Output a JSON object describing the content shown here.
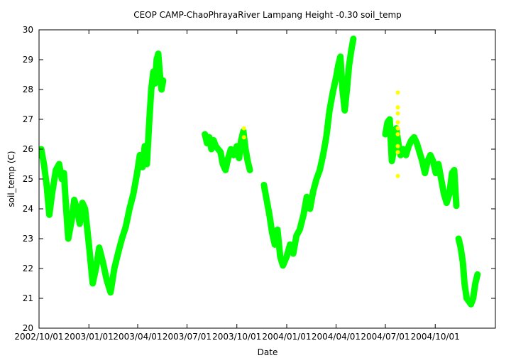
{
  "chart_data": {
    "type": "line",
    "title": "CEOP CAMP-ChaoPhrayaRiver Lampang Height -0.30 soil_temp",
    "xlabel": "Date",
    "ylabel": "soil_temp (C)",
    "ylim": [
      20,
      30
    ],
    "yticks": [
      "20",
      "21",
      "22",
      "23",
      "24",
      "25",
      "26",
      "27",
      "28",
      "29",
      "30"
    ],
    "xlim": [
      "2002-10-01",
      "2005-01-20"
    ],
    "xticks": [
      {
        "date": "2002-10-01",
        "label": "2002/10/01"
      },
      {
        "date": "2003-01-01",
        "label": "2003/01/01"
      },
      {
        "date": "2003-04-01",
        "label": "2003/04/01"
      },
      {
        "date": "2003-07-01",
        "label": "2003/07/01"
      },
      {
        "date": "2003-10-01",
        "label": "2003/10/01"
      },
      {
        "date": "2004-01-01",
        "label": "2004/01/01"
      },
      {
        "date": "2004-04-01",
        "label": "2004/04/01"
      },
      {
        "date": "2004-07-01",
        "label": "2004/07/01"
      },
      {
        "date": "2004-10-01",
        "label": "2004/10/01"
      }
    ],
    "grid": false,
    "series": [
      {
        "color": "#00ff00",
        "segments": [
          [
            [
              "2002-10-01",
              25.8
            ],
            [
              "2002-10-05",
              26.0
            ],
            [
              "2002-10-10",
              25.5
            ],
            [
              "2002-10-15",
              24.8
            ],
            [
              "2002-10-20",
              23.8
            ],
            [
              "2002-10-25",
              24.5
            ],
            [
              "2002-11-01",
              25.3
            ],
            [
              "2002-11-07",
              25.5
            ],
            [
              "2002-11-12",
              25.0
            ],
            [
              "2002-11-16",
              25.2
            ],
            [
              "2002-11-20",
              24.0
            ],
            [
              "2002-11-24",
              23.0
            ],
            [
              "2002-11-30",
              23.6
            ],
            [
              "2002-12-05",
              24.3
            ],
            [
              "2002-12-10",
              24.0
            ],
            [
              "2002-12-15",
              23.5
            ],
            [
              "2002-12-20",
              24.2
            ],
            [
              "2002-12-25",
              24.0
            ],
            [
              "2003-01-01",
              22.8
            ],
            [
              "2003-01-08",
              21.5
            ],
            [
              "2003-01-14",
              22.0
            ],
            [
              "2003-01-20",
              22.7
            ],
            [
              "2003-01-27",
              22.2
            ],
            [
              "2003-02-03",
              21.6
            ],
            [
              "2003-02-10",
              21.2
            ],
            [
              "2003-02-17",
              22.0
            ],
            [
              "2003-02-25",
              22.6
            ],
            [
              "2003-03-03",
              23.0
            ],
            [
              "2003-03-10",
              23.4
            ],
            [
              "2003-03-17",
              24.0
            ],
            [
              "2003-03-24",
              24.5
            ],
            [
              "2003-03-31",
              25.2
            ],
            [
              "2003-04-05",
              25.8
            ],
            [
              "2003-04-10",
              25.4
            ],
            [
              "2003-04-14",
              26.1
            ],
            [
              "2003-04-18",
              25.5
            ],
            [
              "2003-04-22",
              26.8
            ],
            [
              "2003-04-26",
              28.0
            ],
            [
              "2003-04-30",
              28.6
            ],
            [
              "2003-05-03",
              28.2
            ],
            [
              "2003-05-06",
              29.0
            ],
            [
              "2003-05-09",
              29.2
            ],
            [
              "2003-05-12",
              28.5
            ],
            [
              "2003-05-15",
              28.0
            ],
            [
              "2003-05-18",
              28.3
            ]
          ],
          [
            [
              "2003-08-03",
              26.5
            ],
            [
              "2003-08-07",
              26.2
            ],
            [
              "2003-08-11",
              26.4
            ],
            [
              "2003-08-15",
              26.0
            ],
            [
              "2003-08-19",
              26.3
            ],
            [
              "2003-08-23",
              26.1
            ],
            [
              "2003-09-01",
              25.9
            ],
            [
              "2003-09-05",
              25.5
            ],
            [
              "2003-09-10",
              25.3
            ],
            [
              "2003-09-15",
              25.7
            ],
            [
              "2003-09-20",
              26.0
            ],
            [
              "2003-09-25",
              25.8
            ],
            [
              "2003-10-01",
              26.1
            ],
            [
              "2003-10-05",
              25.7
            ],
            [
              "2003-10-09",
              26.3
            ],
            [
              "2003-10-13",
              26.6
            ],
            [
              "2003-10-17",
              26.0
            ],
            [
              "2003-10-21",
              25.6
            ],
            [
              "2003-10-25",
              25.3
            ]
          ],
          [
            [
              "2003-11-20",
              24.8
            ],
            [
              "2003-11-25",
              24.3
            ],
            [
              "2003-11-30",
              23.8
            ],
            [
              "2003-12-05",
              23.2
            ],
            [
              "2003-12-10",
              22.8
            ],
            [
              "2003-12-15",
              23.3
            ],
            [
              "2003-12-20",
              22.4
            ],
            [
              "2003-12-25",
              22.1
            ],
            [
              "2004-01-01",
              22.4
            ],
            [
              "2004-01-07",
              22.8
            ],
            [
              "2004-01-13",
              22.5
            ],
            [
              "2004-01-19",
              23.1
            ],
            [
              "2004-01-25",
              23.3
            ],
            [
              "2004-02-01",
              23.8
            ],
            [
              "2004-02-07",
              24.4
            ],
            [
              "2004-02-13",
              24.0
            ],
            [
              "2004-02-19",
              24.6
            ],
            [
              "2004-02-25",
              25.0
            ],
            [
              "2004-03-02",
              25.3
            ],
            [
              "2004-03-08",
              25.8
            ],
            [
              "2004-03-14",
              26.4
            ],
            [
              "2004-03-20",
              27.3
            ],
            [
              "2004-03-26",
              27.9
            ],
            [
              "2004-04-01",
              28.4
            ],
            [
              "2004-04-05",
              28.8
            ],
            [
              "2004-04-09",
              29.1
            ],
            [
              "2004-04-13",
              28.0
            ],
            [
              "2004-04-17",
              27.3
            ],
            [
              "2004-04-21",
              28.0
            ],
            [
              "2004-04-25",
              28.8
            ],
            [
              "2004-04-29",
              29.3
            ],
            [
              "2004-05-03",
              29.7
            ]
          ],
          [
            [
              "2004-07-01",
              26.5
            ],
            [
              "2004-07-05",
              26.9
            ],
            [
              "2004-07-09",
              27.0
            ],
            [
              "2004-07-13",
              25.6
            ],
            [
              "2004-07-17",
              26.0
            ],
            [
              "2004-07-21",
              26.7
            ],
            [
              "2004-07-25",
              26.2
            ],
            [
              "2004-07-29",
              25.8
            ],
            [
              "2004-08-03",
              26.0
            ],
            [
              "2004-08-08",
              25.8
            ],
            [
              "2004-08-13",
              26.1
            ],
            [
              "2004-08-18",
              26.3
            ],
            [
              "2004-08-23",
              26.4
            ],
            [
              "2004-08-28",
              26.2
            ],
            [
              "2004-09-02",
              25.9
            ],
            [
              "2004-09-07",
              25.6
            ],
            [
              "2004-09-12",
              25.2
            ],
            [
              "2004-09-17",
              25.6
            ],
            [
              "2004-09-22",
              25.8
            ],
            [
              "2004-09-27",
              25.6
            ],
            [
              "2004-10-02",
              25.2
            ],
            [
              "2004-10-07",
              25.5
            ],
            [
              "2004-10-12",
              25.0
            ],
            [
              "2004-10-17",
              24.5
            ],
            [
              "2004-10-22",
              24.2
            ],
            [
              "2004-10-27",
              24.5
            ],
            [
              "2004-11-01",
              25.2
            ],
            [
              "2004-11-05",
              25.3
            ],
            [
              "2004-11-09",
              24.1
            ]
          ],
          [
            [
              "2004-11-13",
              23.0
            ],
            [
              "2004-11-17",
              22.7
            ],
            [
              "2004-11-21",
              22.2
            ],
            [
              "2004-11-24",
              21.5
            ],
            [
              "2004-11-28",
              21.0
            ],
            [
              "2004-12-02",
              20.9
            ],
            [
              "2004-12-06",
              20.8
            ],
            [
              "2004-12-10",
              21.0
            ],
            [
              "2004-12-14",
              21.5
            ],
            [
              "2004-12-18",
              21.8
            ]
          ]
        ]
      },
      {
        "color": "#ffff00",
        "points": [
          [
            "2003-10-14",
            26.7
          ],
          [
            "2003-10-14",
            26.4
          ],
          [
            "2004-07-24",
            27.9
          ],
          [
            "2004-07-24",
            27.4
          ],
          [
            "2004-07-24",
            27.2
          ],
          [
            "2004-07-24",
            26.9
          ],
          [
            "2004-07-24",
            26.7
          ],
          [
            "2004-07-24",
            26.5
          ],
          [
            "2004-07-24",
            26.1
          ],
          [
            "2004-07-24",
            25.9
          ],
          [
            "2004-07-24",
            25.1
          ]
        ]
      }
    ]
  }
}
